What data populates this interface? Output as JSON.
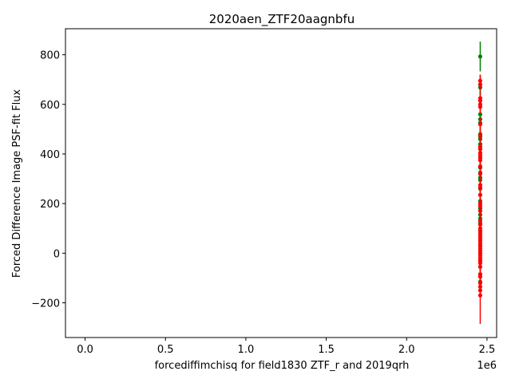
{
  "chart_data": {
    "type": "scatter",
    "title": "2020aen_ZTF20aagnbfu",
    "xlabel": "forcediffimchisq for field1830 ZTF_r and 2019qrh",
    "ylabel": "Forced Difference Image PSF-fit Flux",
    "x_offset_label": "1e6",
    "xlim": [
      -0.122,
      2.56
    ],
    "ylim": [
      -340,
      905
    ],
    "x_scale_factor": 1000000,
    "x_ticks": [
      0.0,
      0.5,
      1.0,
      1.5,
      2.0,
      2.5
    ],
    "x_tick_labels": [
      "0.0",
      "0.5",
      "1.0",
      "1.5",
      "2.0",
      "2.5"
    ],
    "y_ticks": [
      -200,
      0,
      200,
      400,
      600,
      800
    ],
    "y_tick_labels": [
      "−200",
      "0",
      "200",
      "400",
      "600",
      "800"
    ],
    "grid": false,
    "series": [
      {
        "color": "#008000",
        "x_value": 2.458,
        "points": [
          {
            "y": 793,
            "err": 60
          },
          {
            "y": 680,
            "err": 40
          },
          {
            "y": 668,
            "err": 30
          },
          {
            "y": 560,
            "err": 30
          },
          {
            "y": 540,
            "err": 30
          },
          {
            "y": 525,
            "err": 30
          },
          {
            "y": 480,
            "err": 30
          },
          {
            "y": 470,
            "err": 30
          },
          {
            "y": 460,
            "err": 30
          },
          {
            "y": 440,
            "err": 30
          },
          {
            "y": 420,
            "err": 30
          },
          {
            "y": 345,
            "err": 30
          },
          {
            "y": 325,
            "err": 30
          },
          {
            "y": 305,
            "err": 30
          },
          {
            "y": 295,
            "err": 30
          },
          {
            "y": 260,
            "err": 30
          },
          {
            "y": 210,
            "err": 30
          },
          {
            "y": 180,
            "err": 30
          },
          {
            "y": 155,
            "err": 30
          },
          {
            "y": 140,
            "err": 30
          },
          {
            "y": 120,
            "err": 30
          },
          {
            "y": 90,
            "err": 30
          },
          {
            "y": 60,
            "err": 30
          },
          {
            "y": 30,
            "err": 30
          },
          {
            "y": 0,
            "err": 30
          },
          {
            "y": -30,
            "err": 30
          },
          {
            "y": -85,
            "err": 30
          },
          {
            "y": -115,
            "err": 30
          }
        ]
      },
      {
        "color": "#ff0000",
        "x_value": 2.458,
        "points": [
          {
            "y": 695,
            "err": 25
          },
          {
            "y": 680,
            "err": 25
          },
          {
            "y": 625,
            "err": 25
          },
          {
            "y": 615,
            "err": 25
          },
          {
            "y": 600,
            "err": 25
          },
          {
            "y": 590,
            "err": 25
          },
          {
            "y": 520,
            "err": 25
          },
          {
            "y": 475,
            "err": 25
          },
          {
            "y": 430,
            "err": 25
          },
          {
            "y": 420,
            "err": 25
          },
          {
            "y": 405,
            "err": 25
          },
          {
            "y": 395,
            "err": 25
          },
          {
            "y": 385,
            "err": 25
          },
          {
            "y": 375,
            "err": 25
          },
          {
            "y": 350,
            "err": 25
          },
          {
            "y": 320,
            "err": 25
          },
          {
            "y": 275,
            "err": 25
          },
          {
            "y": 265,
            "err": 25
          },
          {
            "y": 235,
            "err": 25
          },
          {
            "y": 200,
            "err": 25
          },
          {
            "y": 190,
            "err": 25
          },
          {
            "y": 170,
            "err": 25
          },
          {
            "y": 130,
            "err": 25
          },
          {
            "y": 115,
            "err": 25
          },
          {
            "y": 100,
            "err": 25
          },
          {
            "y": 90,
            "err": 25
          },
          {
            "y": 80,
            "err": 25
          },
          {
            "y": 70,
            "err": 25
          },
          {
            "y": 60,
            "err": 25
          },
          {
            "y": 50,
            "err": 25
          },
          {
            "y": 40,
            "err": 25
          },
          {
            "y": 30,
            "err": 25
          },
          {
            "y": 20,
            "err": 25
          },
          {
            "y": 10,
            "err": 25
          },
          {
            "y": 0,
            "err": 25
          },
          {
            "y": -10,
            "err": 25
          },
          {
            "y": -20,
            "err": 25
          },
          {
            "y": -30,
            "err": 25
          },
          {
            "y": -40,
            "err": 25
          },
          {
            "y": -55,
            "err": 25
          },
          {
            "y": -85,
            "err": 25
          },
          {
            "y": -95,
            "err": 25
          },
          {
            "y": -120,
            "err": 25
          },
          {
            "y": -135,
            "err": 25
          },
          {
            "y": -150,
            "err": 25
          },
          {
            "y": -170,
            "err": 115
          }
        ]
      }
    ]
  }
}
